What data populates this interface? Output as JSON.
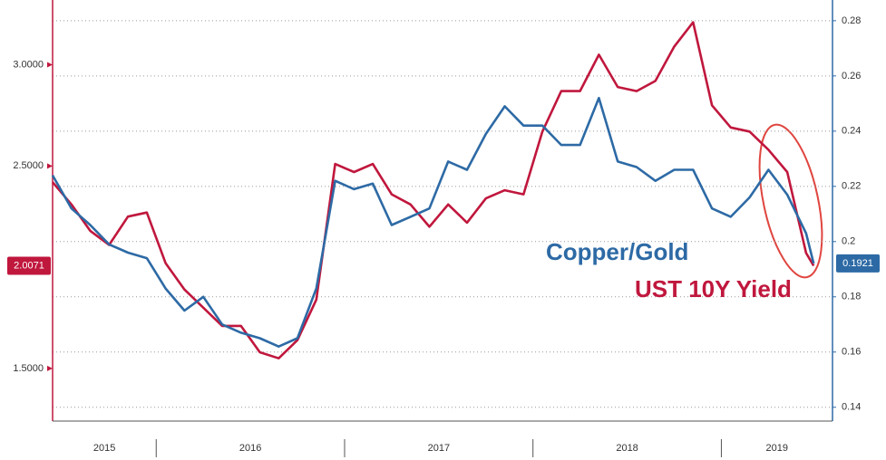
{
  "chart_data": {
    "type": "line",
    "annotations": [
      {
        "text": "Copper/Gold",
        "series": 1
      },
      {
        "text": "UST 10Y Yield",
        "series": 0
      }
    ],
    "x": [
      2015.45,
      2015.55,
      2015.65,
      2015.75,
      2015.85,
      2015.95,
      2016.05,
      2016.15,
      2016.25,
      2016.35,
      2016.45,
      2016.55,
      2016.65,
      2016.75,
      2016.85,
      2016.95,
      2017.05,
      2017.15,
      2017.25,
      2017.35,
      2017.45,
      2017.55,
      2017.65,
      2017.75,
      2017.85,
      2017.95,
      2018.05,
      2018.15,
      2018.25,
      2018.35,
      2018.45,
      2018.55,
      2018.65,
      2018.75,
      2018.85,
      2018.95,
      2019.05,
      2019.15,
      2019.25,
      2019.35,
      2019.45,
      2019.49
    ],
    "series": [
      {
        "name": "UST 10Y Yield",
        "color": "#c0173d",
        "axis": "y",
        "last_label": "2.0071",
        "values": [
          2.42,
          2.31,
          2.18,
          2.11,
          2.25,
          2.27,
          2.02,
          1.89,
          1.8,
          1.71,
          1.71,
          1.58,
          1.55,
          1.64,
          1.84,
          2.51,
          2.47,
          2.51,
          2.36,
          2.31,
          2.2,
          2.31,
          2.22,
          2.34,
          2.38,
          2.36,
          2.67,
          2.87,
          2.87,
          3.05,
          2.89,
          2.87,
          2.92,
          3.09,
          3.21,
          2.8,
          2.69,
          2.67,
          2.58,
          2.47,
          2.07,
          2.0071
        ]
      },
      {
        "name": "Copper/Gold",
        "color": "#2d6aa5",
        "axis": "y2",
        "last_label": "0.1921",
        "values": [
          0.224,
          0.212,
          0.206,
          0.199,
          0.196,
          0.194,
          0.183,
          0.175,
          0.18,
          0.17,
          0.167,
          0.165,
          0.162,
          0.165,
          0.183,
          0.222,
          0.219,
          0.221,
          0.206,
          0.209,
          0.212,
          0.229,
          0.226,
          0.239,
          0.249,
          0.242,
          0.242,
          0.235,
          0.235,
          0.252,
          0.229,
          0.227,
          0.222,
          0.226,
          0.226,
          0.212,
          0.209,
          0.216,
          0.226,
          0.217,
          0.203,
          0.1921
        ]
      }
    ],
    "xlim": [
      2015.45,
      2019.59
    ],
    "xticks": [
      {
        "value": 2015,
        "label": "2015"
      },
      {
        "value": 2016,
        "label": "2016"
      },
      {
        "value": 2017,
        "label": "2017"
      },
      {
        "value": 2018,
        "label": "2018"
      },
      {
        "value": 2019,
        "label": "2019"
      }
    ],
    "ylim": [
      1.24,
      3.32
    ],
    "yticks": [
      {
        "value": 1.5,
        "label": "1.5000"
      },
      {
        "value": 2.5,
        "label": "2.5000"
      },
      {
        "value": 3,
        "label": "3.0000"
      }
    ],
    "y2lim": [
      0.135,
      0.2875
    ],
    "y2ticks": [
      0.14,
      0.16,
      0.18,
      0.2,
      0.22,
      0.24,
      0.26,
      0.28
    ],
    "grid": true
  }
}
